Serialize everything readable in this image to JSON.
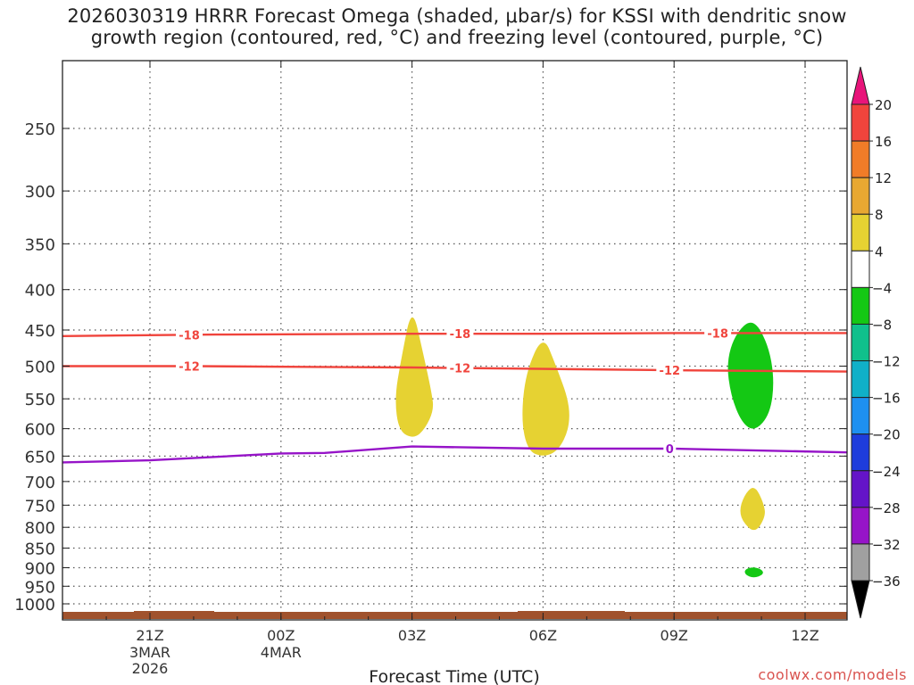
{
  "title_line1": "2026030319 HRRR Forecast Omega (shaded, μbar/s) for KSSI with dendritic snow",
  "title_line2": "growth region (contoured, red, °C) and freezing level (contoured, purple, °C)",
  "credit": "coolwx.com/models",
  "chart_data": {
    "type": "time-height contour",
    "xlabel": "Forecast Time (UTC)",
    "ylabel": "",
    "x_ticks": [
      {
        "hour": 21,
        "label": "21Z",
        "sub": [
          "3MAR",
          "2026"
        ]
      },
      {
        "hour": 24,
        "label": "00Z",
        "sub": [
          "4MAR"
        ]
      },
      {
        "hour": 27,
        "label": "03Z",
        "sub": []
      },
      {
        "hour": 30,
        "label": "06Z",
        "sub": []
      },
      {
        "hour": 33,
        "label": "09Z",
        "sub": []
      },
      {
        "hour": 36,
        "label": "12Z",
        "sub": []
      }
    ],
    "xlim_hours": [
      19,
      37
    ],
    "y_scale": "log-pressure (hPa, inverted)",
    "y_ticks": [
      250,
      300,
      350,
      400,
      450,
      500,
      550,
      600,
      650,
      700,
      750,
      800,
      850,
      900,
      950,
      1000
    ],
    "ylim_hPa": [
      200,
      1030
    ],
    "grid": true,
    "colorbar": {
      "ticks": [
        20,
        16,
        12,
        8,
        4,
        -4,
        -8,
        -12,
        -16,
        -20,
        -24,
        -28,
        -32,
        -36
      ],
      "bins": [
        {
          "range": "16 to 20",
          "color": "#f0443c"
        },
        {
          "range": "12 to 16",
          "color": "#f07c28"
        },
        {
          "range": "8 to 12",
          "color": "#e8a832"
        },
        {
          "range": "4 to 8",
          "color": "#e6d232"
        },
        {
          "range": "-4 to 4",
          "color": "#ffffff"
        },
        {
          "range": "-8 to -4",
          "color": "#14c814"
        },
        {
          "range": "-12 to -8",
          "color": "#10c08c"
        },
        {
          "range": "-16 to -12",
          "color": "#10b0c8"
        },
        {
          "range": "-20 to -16",
          "color": "#1e90f0"
        },
        {
          "range": "-24 to -20",
          "color": "#1e3cdc"
        },
        {
          "range": "-28 to -24",
          "color": "#6414c8"
        },
        {
          "range": "-32 to -28",
          "color": "#9614c8"
        },
        {
          "range": "-36 to -32",
          "color": "#a0a0a0"
        }
      ],
      "over_color": "#e8147a",
      "under_color": "#000000"
    },
    "contours": [
      {
        "name": "-18",
        "color": "#f0443c",
        "label": "-18",
        "points": [
          [
            19.0,
            458
          ],
          [
            22.5,
            456
          ],
          [
            27.0,
            455
          ],
          [
            30.0,
            455
          ],
          [
            33.0,
            454
          ],
          [
            37.0,
            454
          ]
        ],
        "label_hours": [
          21.9,
          28.1,
          34.0
        ]
      },
      {
        "name": "-12",
        "color": "#f0443c",
        "label": "-12",
        "points": [
          [
            19.0,
            500
          ],
          [
            22.0,
            500
          ],
          [
            24.5,
            501
          ],
          [
            27.0,
            502
          ],
          [
            30.0,
            504
          ],
          [
            33.0,
            506
          ],
          [
            37.0,
            508
          ]
        ],
        "label_hours": [
          21.9,
          28.1,
          32.9
        ]
      },
      {
        "name": "0",
        "color": "#9614c8",
        "label": "0",
        "points": [
          [
            19.0,
            662
          ],
          [
            21.0,
            658
          ],
          [
            24.0,
            645
          ],
          [
            25.0,
            644
          ],
          [
            27.0,
            632
          ],
          [
            30.0,
            636
          ],
          [
            33.0,
            636
          ],
          [
            37.0,
            643
          ]
        ],
        "label_hours": [
          32.9
        ]
      }
    ],
    "omega_regions": [
      {
        "value_bin": "4 to 8",
        "color": "#e6d232",
        "points": [
          [
            27.0,
            418
          ],
          [
            27.25,
            480
          ],
          [
            27.45,
            540
          ],
          [
            27.5,
            568
          ],
          [
            27.3,
            600
          ],
          [
            27.05,
            618
          ],
          [
            26.7,
            605
          ],
          [
            26.6,
            550
          ],
          [
            26.75,
            490
          ]
        ]
      },
      {
        "value_bin": "4 to 8",
        "color": "#e6d232",
        "points": [
          [
            30.0,
            455
          ],
          [
            30.3,
            500
          ],
          [
            30.6,
            555
          ],
          [
            30.6,
            600
          ],
          [
            30.35,
            640
          ],
          [
            30.0,
            652
          ],
          [
            29.65,
            640
          ],
          [
            29.5,
            585
          ],
          [
            29.6,
            510
          ]
        ]
      },
      {
        "value_bin": "-8 to -4",
        "color": "#14c814",
        "points": [
          [
            34.8,
            434
          ],
          [
            35.15,
            468
          ],
          [
            35.3,
            520
          ],
          [
            35.2,
            575
          ],
          [
            34.85,
            605
          ],
          [
            34.55,
            590
          ],
          [
            34.3,
            545
          ],
          [
            34.2,
            495
          ],
          [
            34.4,
            455
          ]
        ]
      },
      {
        "value_bin": "4 to 8",
        "color": "#e6d232",
        "points": [
          [
            34.85,
            708
          ],
          [
            35.05,
            745
          ],
          [
            35.1,
            775
          ],
          [
            34.85,
            815
          ],
          [
            34.55,
            785
          ],
          [
            34.5,
            755
          ],
          [
            34.65,
            722
          ]
        ]
      },
      {
        "value_bin": "-8 to -4",
        "color": "#14c814",
        "points": [
          [
            34.82,
            898
          ],
          [
            35.02,
            905
          ],
          [
            35.05,
            918
          ],
          [
            34.82,
            928
          ],
          [
            34.62,
            918
          ],
          [
            34.62,
            904
          ]
        ]
      }
    ],
    "ground_band": {
      "color": "#a0522d",
      "label": "terrain"
    }
  }
}
